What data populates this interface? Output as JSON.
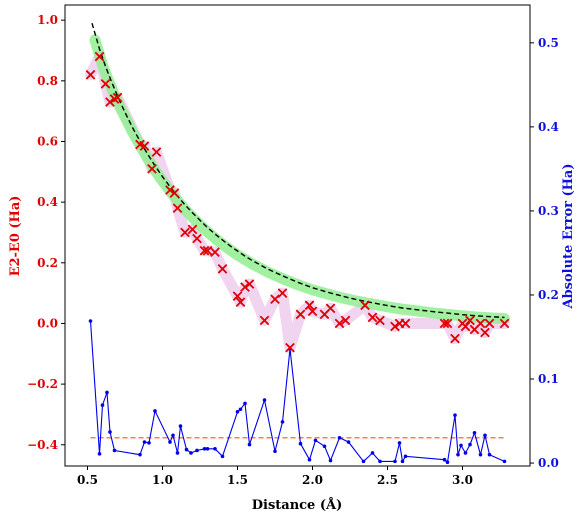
{
  "chart_data": {
    "type": "line",
    "xlabel": "Distance (Å)",
    "ylabel_left": "E2-E0 (Ha)",
    "ylabel_right": "Absolute Error (Ha)",
    "xlim": [
      0.35,
      3.45
    ],
    "ylim_left": [
      -0.47,
      1.05
    ],
    "ylim_right": [
      -0.0035,
      0.545
    ],
    "xticks": [
      0.5,
      1.0,
      1.5,
      2.0,
      2.5,
      3.0
    ],
    "xtick_labels": [
      "0.5",
      "1.0",
      "1.5",
      "2.0",
      "2.5",
      "3.0"
    ],
    "yticks_left": [
      -0.4,
      -0.2,
      0.0,
      0.2,
      0.4,
      0.6,
      0.8,
      1.0
    ],
    "ytick_labels_left": [
      "−0.4",
      "−0.2",
      "0.0",
      "0.2",
      "0.4",
      "0.6",
      "0.8",
      "1.0"
    ],
    "yticks_right": [
      0.0,
      0.1,
      0.2,
      0.3,
      0.4,
      0.5
    ],
    "ytick_labels_right": [
      "0.0",
      "0.1",
      "0.2",
      "0.3",
      "0.4",
      "0.5"
    ],
    "colors": {
      "left_axis": "#e00000",
      "right_axis": "#1010dd",
      "markers": "#e00000",
      "reference_line": "#000000",
      "green_band": "#90ee90",
      "purple_band": "#dda0dd",
      "error_line": "#0000ee",
      "threshold_line": "#ff5500"
    },
    "series": [
      {
        "kind": "reference",
        "axis": "left",
        "style": "dashed-black",
        "x": [
          0.53,
          0.58,
          0.62,
          0.66,
          0.7,
          0.75,
          0.8,
          0.85,
          0.9,
          0.95,
          1.0,
          1.05,
          1.1,
          1.15,
          1.2,
          1.25,
          1.3,
          1.35,
          1.4,
          1.45,
          1.5,
          1.55,
          1.6,
          1.7,
          1.8,
          1.9,
          2.0,
          2.1,
          2.2,
          2.3,
          2.4,
          2.5,
          2.6,
          2.7,
          2.8,
          2.9,
          3.0,
          3.1,
          3.2,
          3.28
        ],
        "y": [
          0.99,
          0.905,
          0.848,
          0.797,
          0.75,
          0.696,
          0.646,
          0.601,
          0.559,
          0.52,
          0.484,
          0.451,
          0.42,
          0.391,
          0.365,
          0.34,
          0.316,
          0.295,
          0.275,
          0.256,
          0.239,
          0.222,
          0.207,
          0.18,
          0.157,
          0.136,
          0.118,
          0.103,
          0.09,
          0.078,
          0.068,
          0.059,
          0.051,
          0.045,
          0.039,
          0.034,
          0.029,
          0.025,
          0.022,
          0.02
        ]
      },
      {
        "kind": "band",
        "axis": "left",
        "style": "green",
        "x": [
          0.55,
          0.6,
          0.64,
          0.68,
          0.72,
          0.76,
          0.8,
          0.85,
          0.9,
          0.95,
          1.0,
          1.05,
          1.1,
          1.15,
          1.2,
          1.25,
          1.3,
          1.35,
          1.4,
          1.45,
          1.5,
          1.55,
          1.6,
          1.7,
          1.8,
          1.9,
          2.0,
          2.1,
          2.2,
          2.3,
          2.4,
          2.5,
          2.6,
          2.7,
          2.8,
          2.9,
          3.0,
          3.1,
          3.2,
          3.28
        ],
        "y": [
          0.935,
          0.852,
          0.8,
          0.753,
          0.71,
          0.671,
          0.632,
          0.587,
          0.545,
          0.505,
          0.47,
          0.437,
          0.405,
          0.376,
          0.35,
          0.325,
          0.302,
          0.281,
          0.261,
          0.243,
          0.226,
          0.211,
          0.196,
          0.17,
          0.148,
          0.128,
          0.111,
          0.097,
          0.084,
          0.073,
          0.064,
          0.055,
          0.047,
          0.041,
          0.035,
          0.03,
          0.025,
          0.021,
          0.018,
          0.016
        ]
      },
      {
        "kind": "band",
        "axis": "left",
        "style": "purple",
        "x": [
          0.52,
          0.58,
          0.62,
          0.65,
          0.68,
          0.7,
          0.85,
          0.88,
          0.93,
          0.96,
          1.05,
          1.08,
          1.1,
          1.15,
          1.2,
          1.23,
          1.28,
          1.3,
          1.35,
          1.4,
          1.5,
          1.52,
          1.55,
          1.58,
          1.68,
          1.75,
          1.8,
          1.85,
          1.92,
          1.98,
          2.0,
          2.08,
          2.12,
          2.18,
          2.22,
          2.35,
          2.4,
          2.45,
          2.55,
          2.58,
          2.62,
          2.88,
          2.9,
          2.95,
          3.0,
          3.02,
          3.05,
          3.08,
          3.12,
          3.15,
          3.18,
          3.28
        ],
        "y": [
          0.82,
          0.88,
          0.79,
          0.73,
          0.74,
          0.745,
          0.59,
          0.585,
          0.51,
          0.565,
          0.44,
          0.43,
          0.38,
          0.3,
          0.31,
          0.28,
          0.24,
          0.24,
          0.235,
          0.18,
          0.09,
          0.07,
          0.12,
          0.13,
          0.01,
          0.08,
          0.1,
          -0.08,
          0.03,
          0.06,
          0.04,
          0.03,
          0.05,
          0.0,
          0.01,
          0.06,
          0.02,
          0.01,
          -0.01,
          0.0,
          0.0,
          0.0,
          0.0,
          -0.05,
          0.0,
          -0.01,
          0.01,
          -0.02,
          0.0,
          -0.03,
          0.0,
          0.0
        ]
      },
      {
        "kind": "markers",
        "axis": "left",
        "marker": "x",
        "x": [
          0.52,
          0.58,
          0.62,
          0.65,
          0.68,
          0.7,
          0.85,
          0.88,
          0.93,
          0.96,
          1.05,
          1.08,
          1.1,
          1.15,
          1.2,
          1.23,
          1.28,
          1.3,
          1.35,
          1.4,
          1.5,
          1.52,
          1.55,
          1.58,
          1.68,
          1.75,
          1.8,
          1.85,
          1.92,
          1.98,
          2.0,
          2.08,
          2.12,
          2.18,
          2.22,
          2.35,
          2.4,
          2.45,
          2.55,
          2.58,
          2.62,
          2.88,
          2.9,
          2.95,
          3.0,
          3.02,
          3.05,
          3.08,
          3.12,
          3.15,
          3.18,
          3.28
        ],
        "y": [
          0.82,
          0.88,
          0.79,
          0.73,
          0.74,
          0.745,
          0.59,
          0.585,
          0.51,
          0.565,
          0.44,
          0.43,
          0.38,
          0.3,
          0.31,
          0.28,
          0.24,
          0.24,
          0.235,
          0.18,
          0.09,
          0.07,
          0.12,
          0.13,
          0.01,
          0.08,
          0.1,
          -0.08,
          0.03,
          0.06,
          0.04,
          0.03,
          0.05,
          0.0,
          0.01,
          0.06,
          0.02,
          0.01,
          -0.01,
          0.0,
          0.0,
          0.0,
          0.0,
          -0.05,
          0.0,
          -0.01,
          0.01,
          -0.02,
          0.0,
          -0.03,
          0.0,
          0.0
        ]
      },
      {
        "kind": "threshold",
        "axis": "right",
        "style": "dashed-orange",
        "x": [
          0.52,
          3.28
        ],
        "y": [
          0.03,
          0.03
        ]
      },
      {
        "kind": "error",
        "axis": "right",
        "marker": "dot",
        "x": [
          0.52,
          0.58,
          0.6,
          0.63,
          0.65,
          0.68,
          0.85,
          0.88,
          0.91,
          0.95,
          1.05,
          1.07,
          1.1,
          1.12,
          1.16,
          1.19,
          1.23,
          1.28,
          1.3,
          1.35,
          1.4,
          1.5,
          1.52,
          1.55,
          1.58,
          1.68,
          1.75,
          1.8,
          1.85,
          1.92,
          1.98,
          2.02,
          2.08,
          2.12,
          2.18,
          2.24,
          2.34,
          2.4,
          2.45,
          2.55,
          2.58,
          2.6,
          2.62,
          2.88,
          2.9,
          2.95,
          2.97,
          2.99,
          3.02,
          3.05,
          3.08,
          3.12,
          3.15,
          3.18,
          3.28
        ],
        "y": [
          0.169,
          0.011,
          0.069,
          0.084,
          0.037,
          0.015,
          0.01,
          0.025,
          0.024,
          0.062,
          0.025,
          0.033,
          0.012,
          0.044,
          0.016,
          0.012,
          0.015,
          0.017,
          0.017,
          0.017,
          0.008,
          0.061,
          0.064,
          0.071,
          0.022,
          0.075,
          0.014,
          0.049,
          0.136,
          0.023,
          0.004,
          0.027,
          0.02,
          0.003,
          0.03,
          0.025,
          0.002,
          0.012,
          0.002,
          0.002,
          0.024,
          0.002,
          0.008,
          0.004,
          0.001,
          0.057,
          0.01,
          0.021,
          0.012,
          0.022,
          0.036,
          0.01,
          0.033,
          0.01,
          0.002
        ]
      }
    ]
  }
}
